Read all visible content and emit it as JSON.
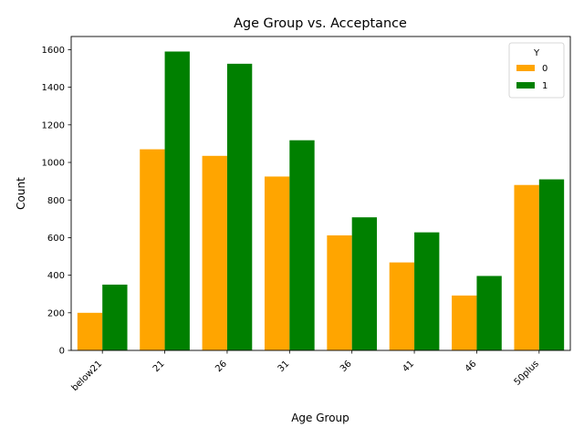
{
  "chart_data": {
    "type": "bar",
    "title": "Age Group vs. Acceptance",
    "xlabel": "Age Group",
    "ylabel": "Count",
    "categories": [
      "below21",
      "21",
      "26",
      "31",
      "36",
      "41",
      "46",
      "50plus"
    ],
    "series": [
      {
        "name": "0",
        "color": "#ffa500",
        "values": [
          200,
          1070,
          1035,
          925,
          612,
          468,
          292,
          880
        ]
      },
      {
        "name": "1",
        "color": "#008000",
        "values": [
          350,
          1590,
          1525,
          1118,
          708,
          628,
          396,
          910
        ]
      }
    ],
    "ylim": [
      0,
      1670
    ],
    "yticks": [
      0,
      200,
      400,
      600,
      800,
      1000,
      1200,
      1400,
      1600
    ],
    "legend": {
      "title": "Y",
      "placement": "top-right"
    },
    "grid": false
  }
}
